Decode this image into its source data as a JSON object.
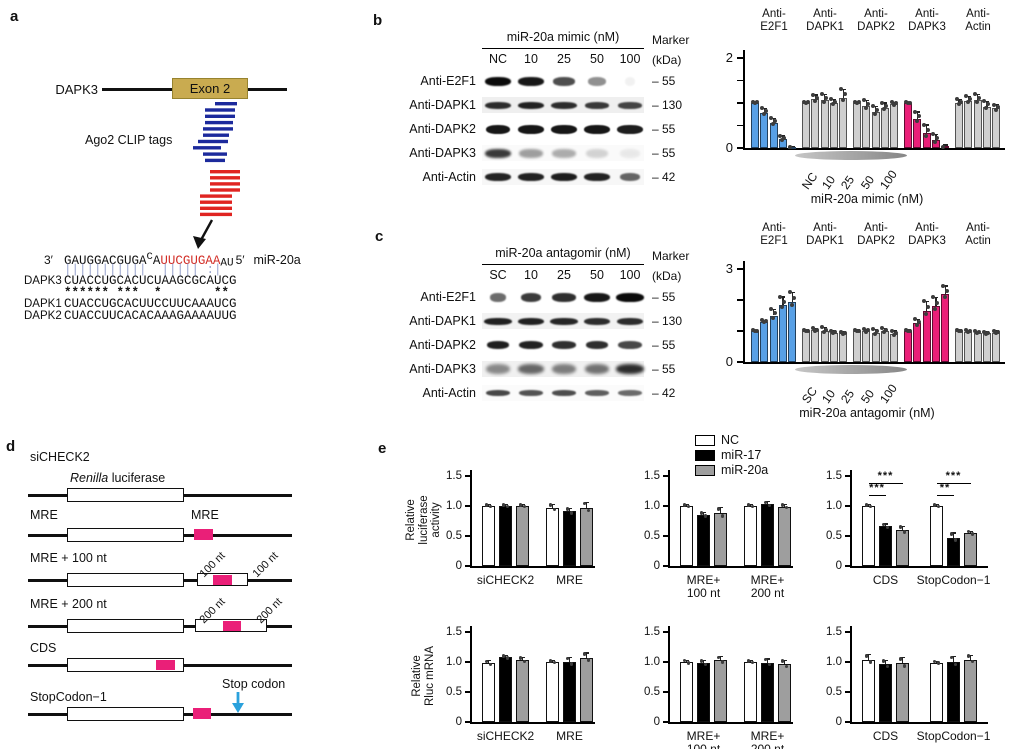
{
  "panels": {
    "a": "a",
    "b": "b",
    "c": "c",
    "d": "d",
    "e": "e"
  },
  "panel_a": {
    "gene": "DAPK3",
    "exon": "Exon 2",
    "clip": "Ago2 CLIP tags",
    "aln": {
      "p3": "3′",
      "seg1": "GAUGGACGUGA",
      "sup": "C",
      "mid": "A",
      "red": "UUCGUGAA",
      "sub": "AU",
      "p5": "5′",
      "mir": "miR-20a",
      "match": "|||||||||||  ||||| :|",
      "stars": "****** ***  *       **",
      "rows": [
        {
          "name": "DAPK3",
          "seq": "CUACCUGCACUCUAAGCGCAUCG"
        },
        {
          "name": "DAPK1",
          "seq": "CUACCUGCACUUCCUUCAAAUCG"
        },
        {
          "name": "DAPK2",
          "seq": "CUACCUUCACACAAAGAAAAUUG"
        }
      ]
    },
    "colors": {
      "exon": "#c9ab50",
      "tag_blue": "#1c2a9c",
      "tag_red": "#e02421",
      "seq_red": "#d22d26"
    }
  },
  "panel_b": {
    "blot": {
      "title": "miR-20a mimic (nM)",
      "marker": "Marker",
      "kda": "(kDa)",
      "lanes": [
        "NC",
        "10",
        "25",
        "50",
        "100"
      ],
      "rows": [
        {
          "label": "Anti-E2F1",
          "kda": "– 55",
          "bands": [
            1,
            0.95,
            0.72,
            0.45,
            0.05
          ],
          "widths": [
            1,
            1,
            0.85,
            0.72,
            0.4
          ],
          "h": 9,
          "blur": 0.7,
          "bg": "#ffffff"
        },
        {
          "label": "Anti-DAPK1",
          "kda": "– 130",
          "bands": [
            0.85,
            0.9,
            0.85,
            0.8,
            0.75
          ],
          "widths": [
            1,
            1,
            1,
            0.95,
            0.9
          ],
          "h": 7,
          "blur": 0.7,
          "bg": "#efefef"
        },
        {
          "label": "Anti-DAPK2",
          "kda": "– 55",
          "bands": [
            0.95,
            0.95,
            0.95,
            0.95,
            0.92
          ],
          "widths": [
            0.95,
            1,
            1,
            1,
            1
          ],
          "h": 9,
          "blur": 0.6,
          "bg": "#ffffff"
        },
        {
          "label": "Anti-DAPK3",
          "kda": "– 55",
          "bands": [
            0.8,
            0.38,
            0.32,
            0.16,
            0.07
          ],
          "widths": [
            1,
            0.9,
            0.9,
            0.85,
            0.8
          ],
          "h": 9,
          "blur": 1.4,
          "bg": "#fafafa"
        },
        {
          "label": "Anti-Actin",
          "kda": "– 42",
          "bands": [
            0.9,
            0.9,
            0.92,
            0.9,
            0.62
          ],
          "widths": [
            1,
            1,
            1,
            1,
            0.8
          ],
          "h": 8,
          "blur": 0.8,
          "bg": "#f7f7f7"
        }
      ]
    }
  },
  "panel_c": {
    "blot": {
      "title": "miR-20a antagomir (nM)",
      "marker": "Marker",
      "kda": "(kDa)",
      "lanes": [
        "SC",
        "10",
        "25",
        "50",
        "100"
      ],
      "rows": [
        {
          "label": "Anti-E2F1",
          "kda": "– 55",
          "bands": [
            0.6,
            0.8,
            0.85,
            0.95,
            1
          ],
          "widths": [
            0.6,
            0.8,
            0.9,
            1,
            1.05
          ],
          "h": 9,
          "blur": 0.7,
          "bg": "#ffffff"
        },
        {
          "label": "Anti-DAPK1",
          "kda": "– 130",
          "bands": [
            0.9,
            0.9,
            0.88,
            0.85,
            0.85
          ],
          "widths": [
            1.05,
            1,
            1.05,
            1,
            1
          ],
          "h": 7,
          "blur": 0.7,
          "bg": "#f2f2f2"
        },
        {
          "label": "Anti-DAPK2",
          "kda": "– 55",
          "bands": [
            0.92,
            0.9,
            0.85,
            0.85,
            0.75
          ],
          "widths": [
            0.85,
            0.95,
            0.9,
            0.85,
            0.95
          ],
          "h": 8,
          "blur": 0.7,
          "bg": "#ffffff"
        },
        {
          "label": "Anti-DAPK3",
          "kda": "– 55",
          "bands": [
            0.45,
            0.6,
            0.5,
            0.55,
            0.85
          ],
          "widths": [
            0.95,
            1,
            0.9,
            0.95,
            1.05
          ],
          "h": 10,
          "blur": 1.6,
          "bg": "#f0f0f0"
        },
        {
          "label": "Anti-Actin",
          "kda": "– 42",
          "bands": [
            0.75,
            0.7,
            0.72,
            0.65,
            0.6
          ],
          "widths": [
            0.95,
            0.9,
            0.9,
            0.9,
            0.95
          ],
          "h": 6,
          "blur": 0.8,
          "bg": "#fbfbfb"
        }
      ]
    }
  },
  "legend": {
    "items": [
      {
        "label": "NC",
        "color": "#ffffff"
      },
      {
        "label": "miR-17",
        "color": "#000000"
      },
      {
        "label": "miR-20a",
        "color": "#9e9e9e"
      }
    ]
  },
  "panel_d": {
    "constructs": [
      {
        "label": "siCHECK2"
      },
      {
        "label": "MRE"
      },
      {
        "label": "MRE + 100 nt"
      },
      {
        "label": "MRE + 200 nt"
      },
      {
        "label": "CDS"
      },
      {
        "label": "StopCodon−1"
      }
    ],
    "renilla": {
      "italic": "Renilla",
      "rest": " luciferase"
    },
    "mre_tag": "MRE",
    "flank100": "100 nt",
    "flank200": "200 nt",
    "stop_label": "Stop codon",
    "mre_color": "#ea1f78",
    "arrow_color": "#2aa1dc"
  },
  "chart_data": [
    {
      "id": "chart-b",
      "type": "bar",
      "ylim": [
        0,
        2
      ],
      "yticks": [
        {
          "v": 0,
          "label": "0"
        },
        {
          "v": 0.5,
          "label": ""
        },
        {
          "v": 1,
          "label": ""
        },
        {
          "v": 1.5,
          "label": ""
        },
        {
          "v": 2,
          "label": "2"
        }
      ],
      "xticklabels": [
        "NC",
        "10",
        "25",
        "50",
        "100"
      ],
      "xlabel": "miR-20a mimic (nM)",
      "groups": [
        {
          "name": [
            "Anti-",
            "E2F1"
          ],
          "color": "#58a0e6",
          "values": [
            1,
            0.78,
            0.56,
            0.2,
            0.02
          ],
          "errs": [
            0.03,
            0.1,
            0.1,
            0.07,
            0.02
          ]
        },
        {
          "name": [
            "Anti-",
            "DAPK1"
          ],
          "color": "#cfcfcf",
          "values": [
            1,
            1.08,
            1.06,
            1,
            1.12
          ],
          "errs": [
            0.03,
            0.1,
            0.13,
            0.08,
            0.18
          ]
        },
        {
          "name": [
            "Anti-",
            "DAPK2"
          ],
          "color": "#cfcfcf",
          "values": [
            1,
            0.93,
            0.8,
            0.9,
            0.97
          ],
          "errs": [
            0.03,
            0.12,
            0.12,
            0.1,
            0.05
          ]
        },
        {
          "name": [
            "Anti-",
            "DAPK3"
          ],
          "color": "#ea1f78",
          "values": [
            1,
            0.65,
            0.33,
            0.18,
            0.04
          ],
          "errs": [
            0.02,
            0.15,
            0.18,
            0.12,
            0.03
          ]
        },
        {
          "name": [
            "Anti-",
            "Actin"
          ],
          "color": "#cfcfcf",
          "values": [
            1,
            1.05,
            1.07,
            0.92,
            0.88
          ],
          "errs": [
            0.08,
            0.1,
            0.12,
            0.12,
            0.08
          ]
        }
      ]
    },
    {
      "id": "chart-c",
      "type": "bar",
      "ylim": [
        0,
        3
      ],
      "yticks": [
        {
          "v": 0,
          "label": "0"
        },
        {
          "v": 1,
          "label": ""
        },
        {
          "v": 2,
          "label": ""
        },
        {
          "v": 3,
          "label": "3"
        }
      ],
      "xticklabels": [
        "SC",
        "10",
        "25",
        "50",
        "100"
      ],
      "xlabel": "miR-20a antagomir (nM)",
      "groups": [
        {
          "name": [
            "Anti-",
            "E2F1"
          ],
          "color": "#58a0e6",
          "values": [
            1,
            1.3,
            1.5,
            1.85,
            1.95
          ],
          "errs": [
            0.02,
            0.05,
            0.2,
            0.25,
            0.3
          ]
        },
        {
          "name": [
            "Anti-",
            "DAPK1"
          ],
          "color": "#cfcfcf",
          "values": [
            1,
            1.02,
            1,
            0.95,
            0.93
          ],
          "errs": [
            0.03,
            0.06,
            0.12,
            0.05,
            0.05
          ]
        },
        {
          "name": [
            "Anti-",
            "DAPK2"
          ],
          "color": "#cfcfcf",
          "values": [
            1,
            1,
            0.95,
            1,
            0.9
          ],
          "errs": [
            0.04,
            0.05,
            0.1,
            0.08,
            0.1
          ]
        },
        {
          "name": [
            "Anti-",
            "DAPK3"
          ],
          "color": "#ea1f78",
          "values": [
            1,
            1.25,
            1.65,
            1.8,
            2.2
          ],
          "errs": [
            0.03,
            0.12,
            0.3,
            0.28,
            0.25
          ]
        },
        {
          "name": [
            "Anti-",
            "Actin"
          ],
          "color": "#cfcfcf",
          "values": [
            1,
            0.97,
            0.95,
            0.93,
            0.95
          ],
          "errs": [
            0.04,
            0.05,
            0.04,
            0.04,
            0.05
          ]
        }
      ]
    },
    {
      "id": "chart-e1",
      "type": "bar",
      "ylim": [
        0,
        1.5
      ],
      "yticks": [
        {
          "v": 0,
          "label": "0"
        },
        {
          "v": 0.5,
          "label": "0.5"
        },
        {
          "v": 1,
          "label": "1.0"
        },
        {
          "v": 1.5,
          "label": "1.5"
        }
      ],
      "ylabel": [
        "Relative",
        "luciferase",
        "activity"
      ],
      "groups": [
        {
          "label": [
            "siCHECK2"
          ],
          "values": [
            1,
            1,
            1
          ],
          "errs": [
            0.02,
            0.02,
            0.02
          ]
        },
        {
          "label": [
            "MRE"
          ],
          "values": [
            0.97,
            0.91,
            0.97
          ],
          "errs": [
            0.06,
            0.05,
            0.09
          ]
        }
      ]
    },
    {
      "id": "chart-e2",
      "type": "bar",
      "ylim": [
        0,
        1.5
      ],
      "yticks": [
        {
          "v": 0,
          "label": "0"
        },
        {
          "v": 0.5,
          "label": "0.5"
        },
        {
          "v": 1,
          "label": "1.0"
        },
        {
          "v": 1.5,
          "label": "1.5"
        }
      ],
      "groups": [
        {
          "label": [
            "MRE+",
            "100 nt"
          ],
          "values": [
            1,
            0.85,
            0.88
          ],
          "errs": [
            0.02,
            0.04,
            0.09
          ]
        },
        {
          "label": [
            "MRE+",
            "200 nt"
          ],
          "values": [
            1,
            1.03,
            0.99
          ],
          "errs": [
            0.02,
            0.04,
            0.03
          ]
        }
      ]
    },
    {
      "id": "chart-e3",
      "type": "bar",
      "ylim": [
        0,
        1.5
      ],
      "yticks": [
        {
          "v": 0,
          "label": "0"
        },
        {
          "v": 0.5,
          "label": "0.5"
        },
        {
          "v": 1,
          "label": "1.0"
        },
        {
          "v": 1.5,
          "label": "1.5"
        }
      ],
      "groups": [
        {
          "label": [
            "CDS"
          ],
          "values": [
            1,
            0.66,
            0.6
          ],
          "errs": [
            0.02,
            0.04,
            0.06
          ]
        },
        {
          "label": [
            "StopCodon−1"
          ],
          "values": [
            1,
            0.47,
            0.55
          ],
          "errs": [
            0.02,
            0.08,
            0.03
          ]
        }
      ],
      "sig": [
        {
          "group": 0,
          "bars": [
            0,
            1
          ],
          "stars": "***",
          "level": 0
        },
        {
          "group": 0,
          "bars": [
            0,
            2
          ],
          "stars": "***",
          "level": 1
        },
        {
          "group": 1,
          "bars": [
            0,
            1
          ],
          "stars": "**",
          "level": 0
        },
        {
          "group": 1,
          "bars": [
            0,
            2
          ],
          "stars": "***",
          "level": 1
        }
      ]
    },
    {
      "id": "chart-e4",
      "type": "bar",
      "ylim": [
        0,
        1.5
      ],
      "yticks": [
        {
          "v": 0,
          "label": "0"
        },
        {
          "v": 0.5,
          "label": "0.5"
        },
        {
          "v": 1,
          "label": "1.0"
        },
        {
          "v": 1.5,
          "label": "1.5"
        }
      ],
      "ylabel": [
        "Relative",
        "Rluc mRNA"
      ],
      "groups": [
        {
          "label": [
            "siCHECK2"
          ],
          "values": [
            0.98,
            1.08,
            1.03
          ],
          "errs": [
            0.04,
            0.03,
            0.05
          ]
        },
        {
          "label": [
            "MRE"
          ],
          "values": [
            1,
            1,
            1.07
          ],
          "errs": [
            0.02,
            0.07,
            0.08
          ]
        }
      ]
    },
    {
      "id": "chart-e5",
      "type": "bar",
      "ylim": [
        0,
        1.5
      ],
      "yticks": [
        {
          "v": 0,
          "label": "0"
        },
        {
          "v": 0.5,
          "label": "0.5"
        },
        {
          "v": 1,
          "label": "1.0"
        },
        {
          "v": 1.5,
          "label": "1.5"
        }
      ],
      "groups": [
        {
          "label": [
            "MRE+",
            "100 nt"
          ],
          "values": [
            1,
            0.98,
            1.03
          ],
          "errs": [
            0.03,
            0.05,
            0.06
          ]
        },
        {
          "label": [
            "MRE+",
            "200 nt"
          ],
          "values": [
            1,
            0.99,
            0.96
          ],
          "errs": [
            0.02,
            0.06,
            0.07
          ]
        }
      ]
    },
    {
      "id": "chart-e6",
      "type": "bar",
      "ylim": [
        0,
        1.5
      ],
      "yticks": [
        {
          "v": 0,
          "label": "0"
        },
        {
          "v": 0.5,
          "label": "0.5"
        },
        {
          "v": 1,
          "label": "1.0"
        },
        {
          "v": 1.5,
          "label": "1.5"
        }
      ],
      "groups": [
        {
          "label": [
            "CDS"
          ],
          "values": [
            1.04,
            0.96,
            0.98
          ],
          "errs": [
            0.08,
            0.07,
            0.09
          ]
        },
        {
          "label": [
            "StopCodon−1"
          ],
          "values": [
            0.99,
            1,
            1.04
          ],
          "errs": [
            0.02,
            0.09,
            0.07
          ]
        }
      ]
    }
  ]
}
